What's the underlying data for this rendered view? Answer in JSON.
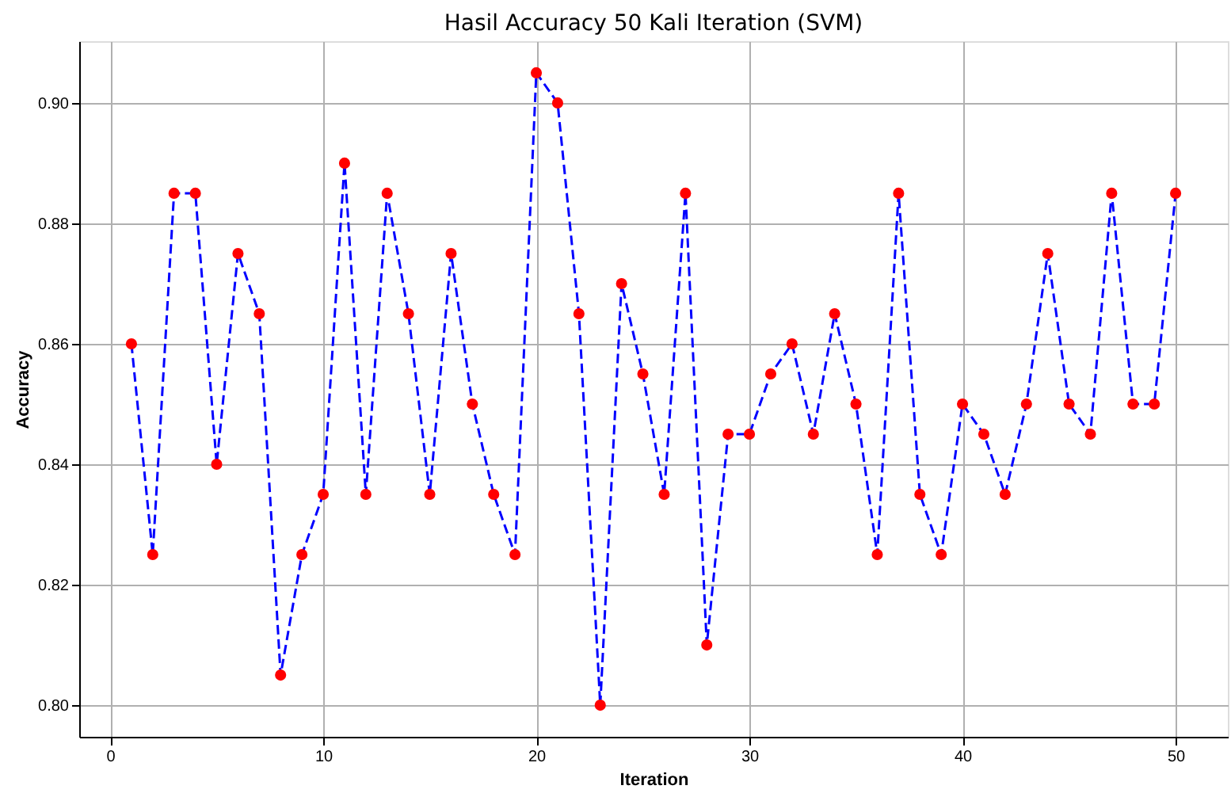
{
  "chart_data": {
    "type": "line",
    "title": "Hasil Accuracy 50 Kali Iteration (SVM)",
    "xlabel": "Iteration",
    "ylabel": "Accuracy",
    "x": [
      1,
      2,
      3,
      4,
      5,
      6,
      7,
      8,
      9,
      10,
      11,
      12,
      13,
      14,
      15,
      16,
      17,
      18,
      19,
      20,
      21,
      22,
      23,
      24,
      25,
      26,
      27,
      28,
      29,
      30,
      31,
      32,
      33,
      34,
      35,
      36,
      37,
      38,
      39,
      40,
      41,
      42,
      43,
      44,
      45,
      46,
      47,
      48,
      49,
      50
    ],
    "series": [
      {
        "color": "#0000ff",
        "colors": [
          "#ff0000",
          "#ff0000",
          "#ff0000",
          "#ff0000",
          "#ff0000",
          "#ff0000",
          "#ff0000",
          "#ff0000",
          "#ff0000",
          "#ff0000",
          "#ff0000",
          "#ff0000",
          "#ff0000",
          "#ff0000",
          "#ff0000",
          "#ff0000",
          "#ff0000",
          "#ff0000",
          "#ff0000",
          "#ff0000",
          "#ff0000",
          "#ff0000",
          "#ff0000",
          "#ff0000",
          "#ff0000",
          "#ff0000",
          "#ff0000",
          "#ff0000",
          "#ff0000",
          "#ff0000",
          "#ff0000",
          "#ff0000",
          "#ff0000",
          "#ff0000",
          "#ff0000",
          "#ff0000",
          "#ff0000",
          "#ff0000",
          "#ff0000",
          "#ff0000",
          "#ff0000",
          "#ff0000",
          "#ff0000",
          "#ff0000",
          "#ff0000",
          "#ff0000",
          "#ff0000",
          "#ff0000",
          "#ff0000",
          "#ff0000"
        ],
        "values": [
          0.86,
          0.825,
          0.885,
          0.885,
          0.84,
          0.875,
          0.865,
          0.805,
          0.825,
          0.835,
          0.89,
          0.835,
          0.885,
          0.865,
          0.835,
          0.875,
          0.85,
          0.835,
          0.825,
          0.905,
          0.9,
          0.865,
          0.8,
          0.87,
          0.855,
          0.835,
          0.885,
          0.81,
          0.845,
          0.845,
          0.855,
          0.86,
          0.845,
          0.865,
          0.85,
          0.825,
          0.885,
          0.835,
          0.825,
          0.85,
          0.845,
          0.835,
          0.85,
          0.875,
          0.85,
          0.845,
          0.885,
          0.85,
          0.85,
          0.885
        ]
      }
    ],
    "xlim": [
      -1.45,
      52.45
    ],
    "xticks": [
      0,
      10,
      20,
      30,
      40,
      50
    ],
    "ylim": [
      0.79475,
      0.91025
    ],
    "yticks": [
      {
        "value": 0.8,
        "label": "0.80"
      },
      {
        "value": 0.82,
        "label": "0.82"
      },
      {
        "value": 0.84,
        "label": "0.84"
      },
      {
        "value": 0.86,
        "label": "0.86"
      },
      {
        "value": 0.88,
        "label": "0.88"
      },
      {
        "value": 0.9,
        "label": "0.90"
      }
    ],
    "grid": true,
    "marker": "circle",
    "line_style": "dashed"
  }
}
